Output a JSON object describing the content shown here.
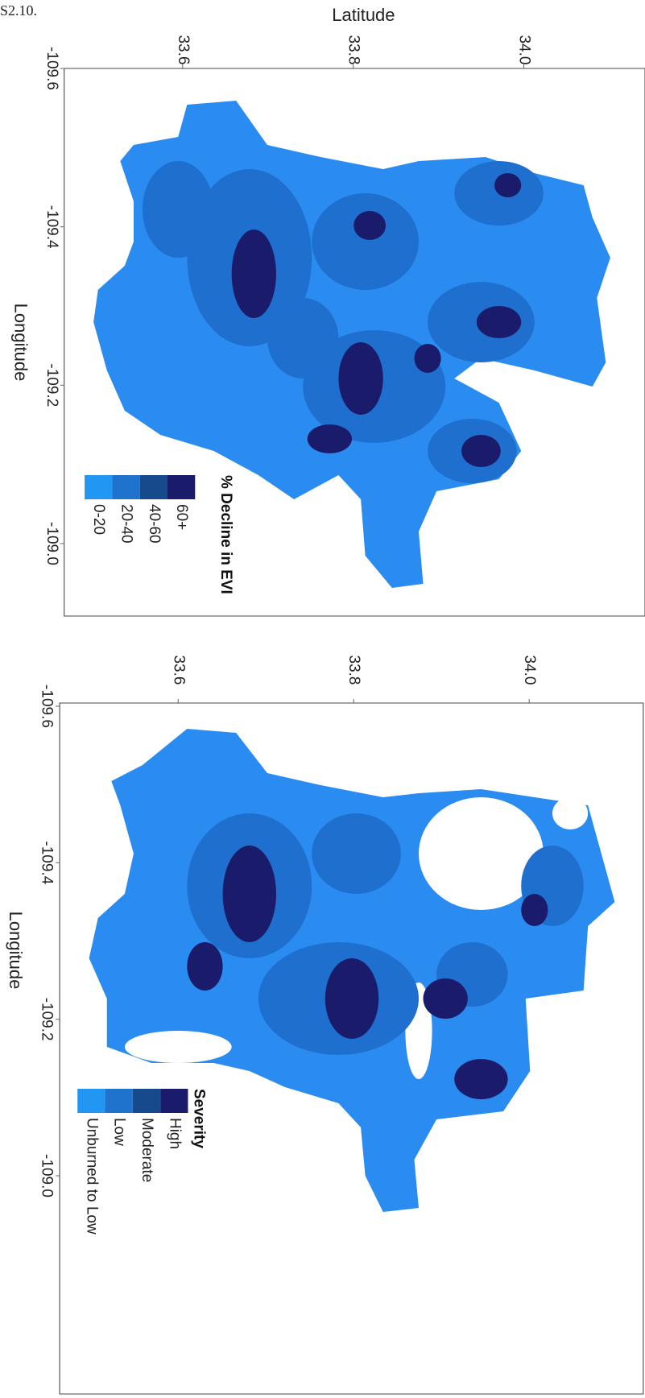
{
  "caption": "S2.10.",
  "panels": [
    {
      "x_axis_label": "Latitude",
      "y_axis_label": "Longitude",
      "lat_ticks": [
        33.6,
        33.8,
        {
          "value": 34.0,
          "label": "34.0"
        }
      ],
      "lon_ticks": [
        -109.6,
        -109.4,
        -109.2,
        {
          "value": -109.0,
          "label": "-109.0"
        }
      ],
      "legend": {
        "title": "% Decline in EVI",
        "items": [
          {
            "label": "0-20",
            "color": "#2196f3"
          },
          {
            "label": "20-40",
            "color": "#1f73cc"
          },
          {
            "label": "40-60",
            "color": "#174a8c"
          },
          {
            "label": "60+",
            "color": "#1b1b6b"
          }
        ]
      }
    },
    {
      "y_axis_label": "Longitude",
      "lat_ticks": [
        33.6,
        33.8,
        {
          "value": 34.0,
          "label": "34.0"
        }
      ],
      "lon_ticks": [
        -109.6,
        -109.4,
        -109.2,
        {
          "value": -109.0,
          "label": "-109.0"
        }
      ],
      "legend": {
        "title": "Severity",
        "items": [
          {
            "label": "Unburned to Low",
            "color": "#2196f3"
          },
          {
            "label": "Low",
            "color": "#1f73cc"
          },
          {
            "label": "Moderate",
            "color": "#174a8c"
          },
          {
            "label": "High",
            "color": "#1b1b6b"
          }
        ]
      }
    }
  ]
}
